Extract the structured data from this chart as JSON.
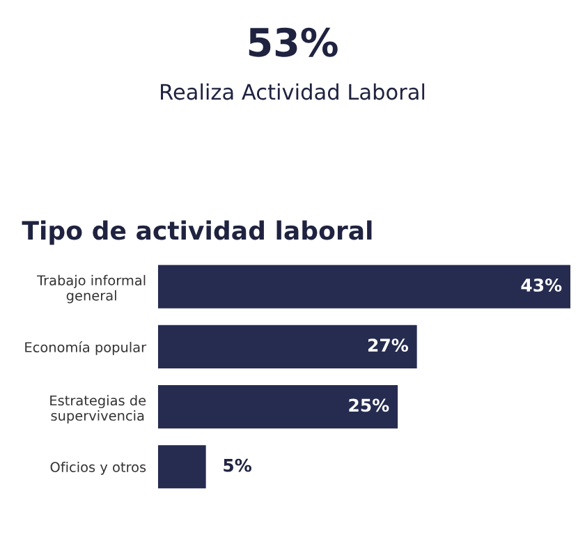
{
  "chart_data": [
    {
      "type": "other",
      "title": "53%",
      "subtitle": "Realiza Actividad Laboral"
    },
    {
      "type": "bar",
      "orientation": "horizontal",
      "title": "Tipo de actividad laboral",
      "categories": [
        "Trabajo informal general",
        "Economía popular",
        "Estrategias de supervivencia",
        "Oficios y otros"
      ],
      "values": [
        43,
        27,
        25,
        5
      ],
      "color": "#262b50",
      "value_labels": [
        "43%",
        "27%",
        "25%",
        "5%"
      ]
    }
  ]
}
